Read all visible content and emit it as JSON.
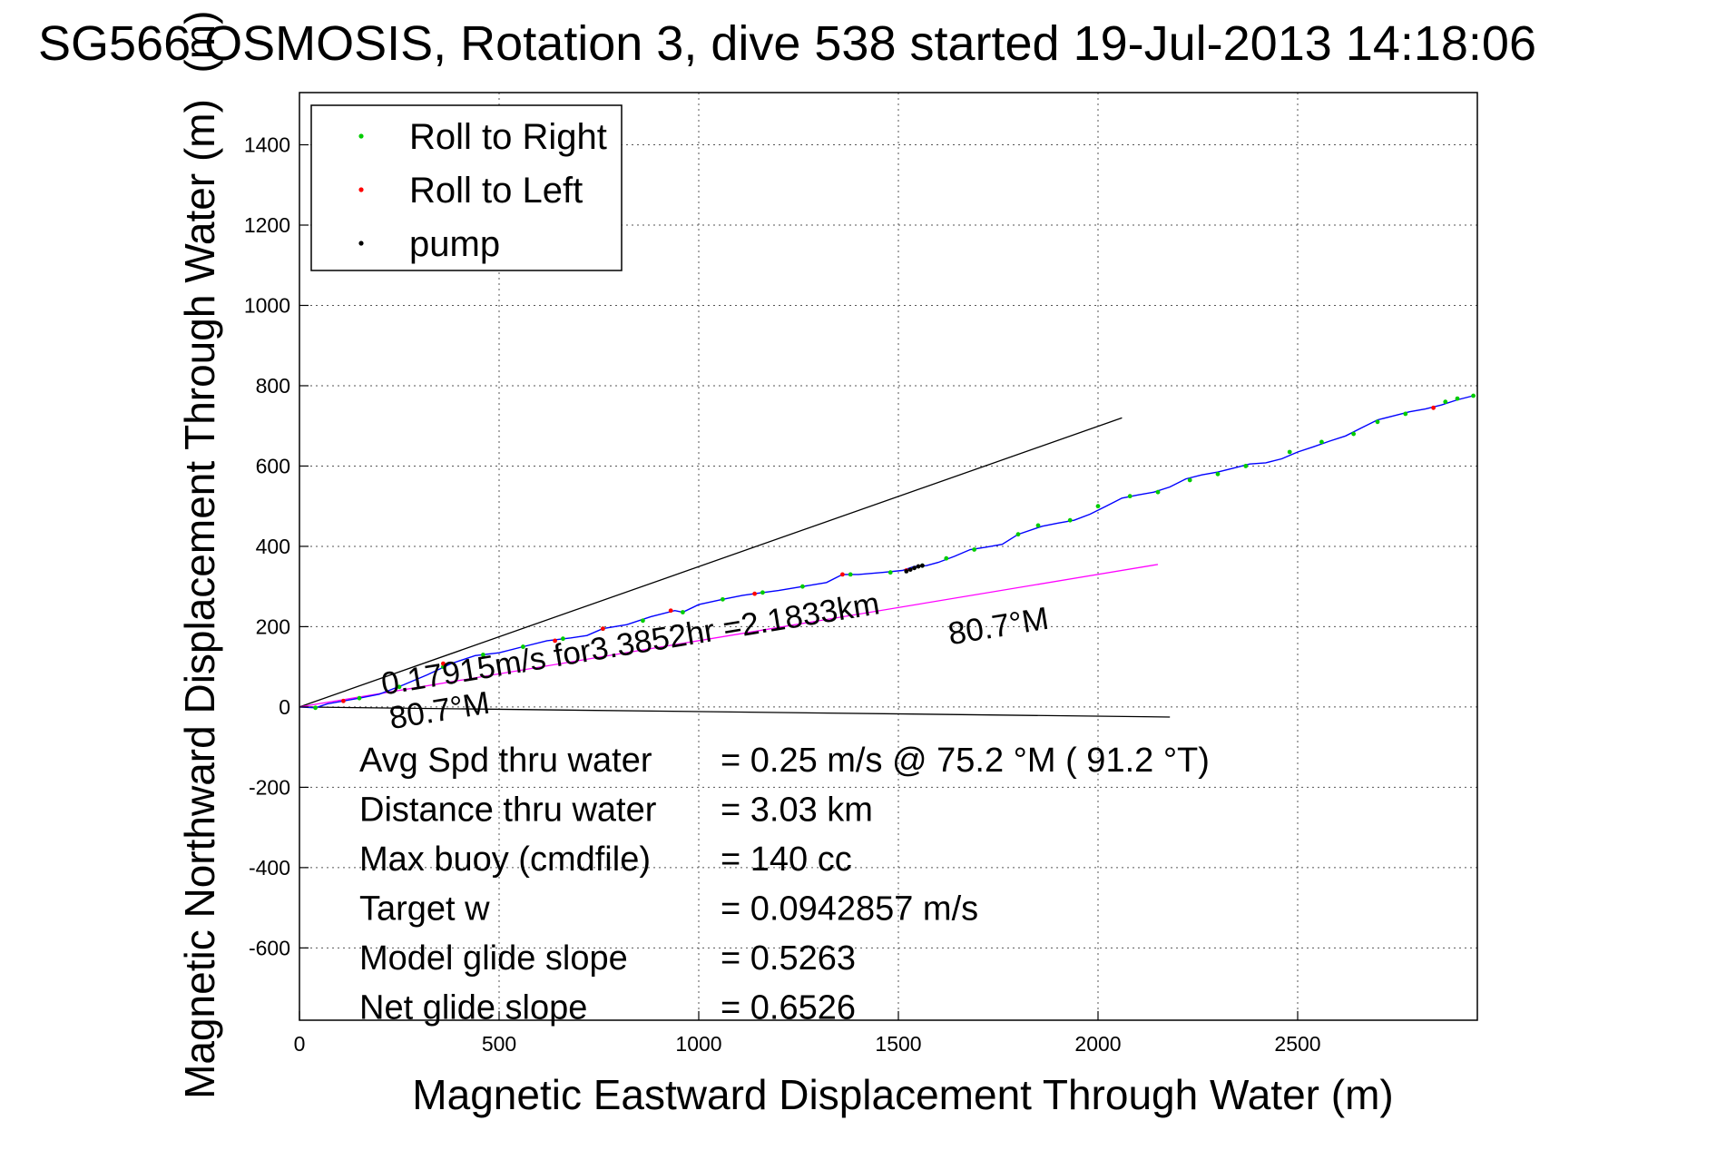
{
  "chart_data": {
    "type": "line",
    "title": "SG566 OSMOSIS, Rotation 3, dive 538 started 19-Jul-2013 14:18:06",
    "title_overlap_label": "(m)",
    "xlabel": "Magnetic Eastward Displacement Through Water (m)",
    "ylabel": "Magnetic Northward Displacement Through Water (m)",
    "xlim": [
      0,
      2950
    ],
    "ylim": [
      -780,
      1530
    ],
    "grid": true,
    "legend_placement": "top-left",
    "x_ticks": [
      0,
      500,
      1000,
      1500,
      2000,
      2500
    ],
    "y_ticks": [
      -600,
      -400,
      -200,
      0,
      200,
      400,
      600,
      800,
      1000,
      1200,
      1400
    ],
    "legend": [
      {
        "label": "Roll to Right",
        "color": "#00cc00"
      },
      {
        "label": "Roll to Left",
        "color": "#ff0000"
      },
      {
        "label": "pump",
        "color": "#000000"
      }
    ],
    "series": [
      {
        "color": "#0000ff",
        "x": [
          0,
          40,
          70,
          110,
          150,
          200,
          260,
          320,
          380,
          440,
          500,
          560,
          620,
          680,
          720,
          760,
          820,
          880,
          940,
          960,
          1000,
          1060,
          1110,
          1140,
          1200,
          1260,
          1320,
          1360,
          1400,
          1460,
          1510,
          1540,
          1570,
          1600,
          1640,
          1680,
          1720,
          1760,
          1800,
          1860,
          1900,
          1940,
          1980,
          2020,
          2060,
          2100,
          2140,
          2180,
          2220,
          2260,
          2300,
          2340,
          2380,
          2420,
          2460,
          2500,
          2540,
          2580,
          2620,
          2660,
          2700,
          2740,
          2780,
          2820,
          2860,
          2900,
          2940
        ],
        "y": [
          0,
          -2,
          8,
          15,
          22,
          32,
          55,
          80,
          108,
          128,
          135,
          150,
          165,
          172,
          178,
          195,
          205,
          225,
          240,
          236,
          255,
          268,
          278,
          282,
          290,
          300,
          310,
          330,
          330,
          335,
          340,
          350,
          352,
          360,
          375,
          392,
          398,
          405,
          430,
          450,
          458,
          465,
          480,
          500,
          520,
          528,
          535,
          548,
          568,
          578,
          585,
          595,
          605,
          608,
          618,
          635,
          648,
          662,
          675,
          695,
          715,
          725,
          735,
          742,
          752,
          765,
          775
        ]
      }
    ],
    "roll_right_points": {
      "x": [
        40,
        150,
        250,
        360,
        460,
        560,
        660,
        760,
        860,
        960,
        1060,
        1160,
        1260,
        1380,
        1480,
        1560,
        1620,
        1690,
        1800,
        1850,
        1930,
        2000,
        2080,
        2150,
        2230,
        2300,
        2370,
        2480,
        2560,
        2640,
        2700,
        2770,
        2870,
        2900,
        2940
      ],
      "y": [
        -2,
        22,
        50,
        100,
        130,
        150,
        170,
        195,
        215,
        236,
        268,
        285,
        300,
        330,
        335,
        352,
        370,
        392,
        430,
        452,
        465,
        500,
        525,
        535,
        565,
        580,
        600,
        635,
        660,
        680,
        710,
        730,
        760,
        768,
        775
      ]
    },
    "roll_left_points": {
      "x": [
        110,
        360,
        640,
        760,
        930,
        1140,
        1360,
        1520,
        2840
      ],
      "y": [
        15,
        108,
        165,
        195,
        240,
        282,
        330,
        340,
        745
      ]
    },
    "pump_points": {
      "x": [
        1520,
        1530,
        1540,
        1550,
        1560
      ],
      "y": [
        338,
        342,
        346,
        350,
        352
      ]
    },
    "reference_lines": [
      {
        "color": "#000000",
        "x": [
          0,
          2060
        ],
        "y": [
          0,
          720
        ]
      },
      {
        "color": "#000000",
        "x": [
          0,
          2180
        ],
        "y": [
          0,
          -25
        ]
      },
      {
        "color": "#ff00ff",
        "x": [
          0,
          2150
        ],
        "y": [
          0,
          355
        ]
      }
    ],
    "annotations": [
      {
        "text": "0.17915m/s for3.3852hr =2.1833km",
        "x": 210,
        "y": 30,
        "angle": -9.3
      },
      {
        "text": "80.7°M",
        "x": 1630,
        "y": 155,
        "angle": -9.3
      },
      {
        "text": "80.7°M",
        "x": 230,
        "y": -55,
        "angle": -9.3
      }
    ],
    "stats": [
      {
        "label": "Avg Spd thru water",
        "value": "=  0.25 m/s @  75.2 °M ( 91.2 °T)"
      },
      {
        "label": "Distance thru water",
        "value": "=  3.03 km"
      },
      {
        "label": "Max buoy (cmdfile)",
        "value": "= 140 cc"
      },
      {
        "label": "Target w",
        "value": "= 0.0942857 m/s"
      },
      {
        "label": "Model glide slope",
        "value": "= 0.5263"
      },
      {
        "label": "Net glide slope",
        "value": "= 0.6526"
      }
    ]
  }
}
